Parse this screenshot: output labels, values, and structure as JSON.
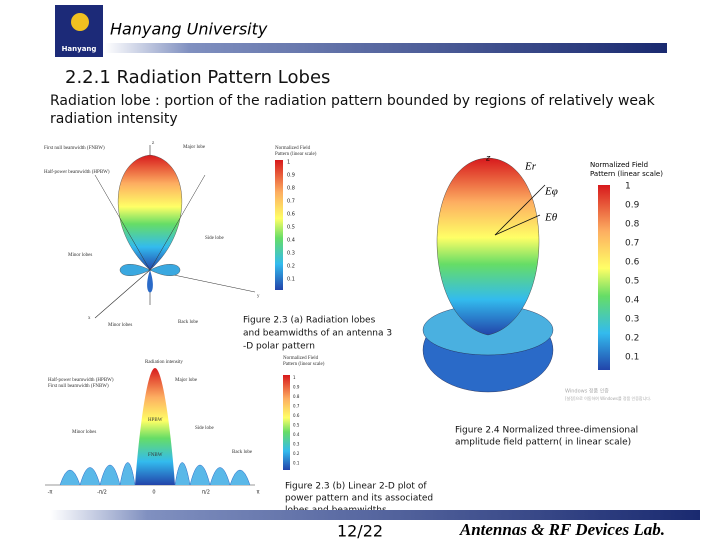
{
  "header": {
    "university": "Hanyang University",
    "logo_text": "Hanyang"
  },
  "title": "2.2.1 Radiation Pattern Lobes",
  "body": [
    "Radiation lobe : portion of the radiation pattern bounded by regions of relatively weak",
    "radiation intensity"
  ],
  "figures": [
    {
      "labels": [
        "First null beamwidth (FNBW)",
        "Half-power beamwidth (HPBW)",
        "Major lobe",
        "Side lobe",
        "Minor lobes",
        "Minor lobes",
        "Back lobe",
        "z",
        "x",
        "y"
      ],
      "colorbar_title": [
        "Normalized Field",
        "Pattern (linear scale)"
      ],
      "colorbar_ticks": [
        1,
        0.9,
        0.8,
        0.7,
        0.6,
        0.5,
        0.4,
        0.3,
        0.2,
        0.1
      ],
      "caption": [
        "Figure 2.3  (a) Radiation lobes",
        "and beamwidths of an antenna 3",
        "-D polar pattern"
      ]
    },
    {
      "labels": [
        "z",
        "Eφ",
        "Eθ",
        "Er"
      ],
      "colorbar_title": [
        "Normalized Field",
        "Pattern (linear scale)"
      ],
      "colorbar_ticks": [
        1,
        0.9,
        0.8,
        0.7,
        0.6,
        0.5,
        0.4,
        0.3,
        0.2,
        0.1
      ],
      "watermark": [
        "Windows 정품 인증",
        "[설정]으로 이동하여 Windows를 정품 인증합니다."
      ],
      "caption": [
        "Figure 2.4  Normalized three-dimensional",
        "amplitude field pattern( in linear scale)"
      ]
    },
    {
      "labels": [
        "Radiation intensity",
        "Half-power beamwidth (HPBW)",
        "First null beamwidth (FNBW)",
        "Major lobe",
        "Minor lobes",
        "Side lobe",
        "Back lobe",
        "HPBW",
        "FNBW"
      ],
      "x_labels": [
        "-π",
        "-π/2",
        "0",
        "π/2",
        "π"
      ],
      "colorbar_title": [
        "Normalized Field",
        "Pattern (linear scale)"
      ],
      "colorbar_ticks": [
        1,
        0.9,
        0.8,
        0.7,
        0.6,
        0.5,
        0.4,
        0.3,
        0.2,
        0.1
      ],
      "caption": [
        "Figure 2.3  (b) Linear 2-D plot of",
        "power pattern and its associated",
        "lobes and beamwidths."
      ]
    }
  ],
  "footer": {
    "page": "12/22",
    "lab": "Antennas & RF Devices Lab."
  }
}
